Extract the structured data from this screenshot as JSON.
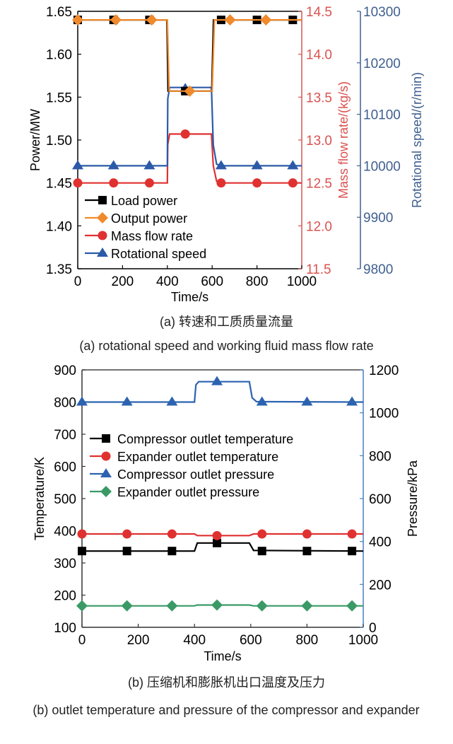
{
  "colors": {
    "load_power": "#000000",
    "output_power": "#f08a2c",
    "mass_flow": "#e03131",
    "rot_speed": "#2b5aa8",
    "comp_temp": "#000000",
    "exp_temp": "#e03131",
    "comp_press": "#2b63b0",
    "exp_press": "#3a9a66",
    "red_axis": "#d9534f",
    "blue_axis": "#3f5f8f",
    "press_axis": "#4a7fc0"
  },
  "chart_data": [
    {
      "type": "line",
      "title": "",
      "xlabel": "Time/s",
      "x_ticks": [
        "0",
        "200",
        "400",
        "600",
        "800",
        "1000"
      ],
      "xlim": [
        0,
        1000
      ],
      "axes": [
        {
          "label": "Power/MW",
          "side": "left",
          "ylim": [
            1.35,
            1.65
          ],
          "ticks": [
            "1.35",
            "1.40",
            "1.45",
            "1.50",
            "1.55",
            "1.60",
            "1.65"
          ]
        },
        {
          "label": "Mass flow rate/(kg/s)",
          "side": "right",
          "ylim": [
            11.5,
            14.5
          ],
          "ticks": [
            "11.5",
            "12.0",
            "12.5",
            "13.0",
            "13.5",
            "14.0",
            "14.5"
          ]
        },
        {
          "label": "Rotational speed/(r/min)",
          "side": "right-outer",
          "ylim": [
            9800,
            10300
          ],
          "ticks": [
            "9800",
            "9900",
            "10000",
            "10100",
            "10200",
            "10300"
          ]
        }
      ],
      "legend_position": "bottom-left",
      "series": [
        {
          "name": "Load power",
          "axis": 0,
          "marker": "square",
          "line": [
            [
              0,
              1.64
            ],
            [
              398,
              1.64
            ],
            [
              403,
              1.557
            ],
            [
              598,
              1.557
            ],
            [
              606,
              1.64
            ],
            [
              1000,
              1.64
            ]
          ],
          "marker_x": [
            0,
            160,
            320,
            480,
            640,
            800,
            960
          ],
          "marker_y": [
            1.64,
            1.64,
            1.64,
            1.557,
            1.64,
            1.64,
            1.64
          ]
        },
        {
          "name": "Output power",
          "axis": 0,
          "marker": "diamond",
          "line": [
            [
              0,
              1.64
            ],
            [
              400,
              1.64
            ],
            [
              408,
              1.557
            ],
            [
              600,
              1.557
            ],
            [
              610,
              1.64
            ],
            [
              1000,
              1.64
            ]
          ],
          "marker_x": [
            0,
            170,
            330,
            500,
            680,
            840
          ],
          "marker_y": [
            1.64,
            1.64,
            1.64,
            1.557,
            1.64,
            1.64
          ]
        },
        {
          "name": "Mass flow rate",
          "axis": 1,
          "marker": "circle",
          "line": [
            [
              0,
              12.5
            ],
            [
              400,
              12.5
            ],
            [
              402,
              12.95
            ],
            [
              410,
              13.07
            ],
            [
              597,
              13.07
            ],
            [
              605,
              12.7
            ],
            [
              620,
              12.52
            ],
            [
              640,
              12.5
            ],
            [
              1000,
              12.5
            ]
          ],
          "marker_x": [
            0,
            160,
            320,
            480,
            640,
            800,
            960
          ],
          "marker_y": [
            12.5,
            12.5,
            12.5,
            13.07,
            12.5,
            12.5,
            12.5
          ]
        },
        {
          "name": "Rotational speed",
          "axis": 2,
          "marker": "triangle",
          "line": [
            [
              0,
              10000
            ],
            [
              400,
              10000
            ],
            [
              402,
              10130
            ],
            [
              410,
              10152
            ],
            [
              597,
              10152
            ],
            [
              605,
              10040
            ],
            [
              620,
              10003
            ],
            [
              640,
              10000
            ],
            [
              1000,
              10000
            ]
          ],
          "marker_x": [
            0,
            160,
            320,
            480,
            640,
            800,
            960
          ],
          "marker_y": [
            10000,
            10000,
            10000,
            10150,
            10000,
            10000,
            10000
          ]
        }
      ],
      "caption_cn": "(a) 转速和工质质量流量",
      "caption_en": "(a) rotational speed and working fluid mass flow rate"
    },
    {
      "type": "line",
      "title": "",
      "xlabel": "Time/s",
      "x_ticks": [
        "0",
        "200",
        "400",
        "600",
        "800",
        "1000"
      ],
      "xlim": [
        0,
        1000
      ],
      "axes": [
        {
          "label": "Temperature/K",
          "side": "left",
          "ylim": [
            100,
            900
          ],
          "ticks": [
            "100",
            "200",
            "300",
            "400",
            "500",
            "600",
            "700",
            "800",
            "900"
          ]
        },
        {
          "label": "Pressure/kPa",
          "side": "right",
          "ylim": [
            0,
            1200
          ],
          "ticks": [
            "0",
            "200",
            "400",
            "600",
            "800",
            "1000",
            "1200"
          ]
        }
      ],
      "legend_position": "center-left",
      "series": [
        {
          "name": "Compressor outlet temperature",
          "axis": 0,
          "marker": "square",
          "line": [
            [
              0,
              337
            ],
            [
              400,
              337
            ],
            [
              410,
              362
            ],
            [
              595,
              362
            ],
            [
              610,
              339
            ],
            [
              1000,
              337
            ]
          ],
          "marker_x": [
            0,
            160,
            320,
            480,
            640,
            800,
            960
          ],
          "marker_y": [
            337,
            337,
            337,
            362,
            337,
            337,
            337
          ]
        },
        {
          "name": "Expander outlet temperature",
          "axis": 0,
          "marker": "circle",
          "line": [
            [
              0,
              390
            ],
            [
              400,
              390
            ],
            [
              410,
              385
            ],
            [
              595,
              385
            ],
            [
              610,
              390
            ],
            [
              1000,
              390
            ]
          ],
          "marker_x": [
            0,
            160,
            320,
            480,
            640,
            800,
            960
          ],
          "marker_y": [
            390,
            390,
            390,
            385,
            390,
            390,
            390
          ]
        },
        {
          "name": "Compressor outlet pressure",
          "axis": 1,
          "marker": "triangle",
          "line": [
            [
              0,
              1050
            ],
            [
              400,
              1050
            ],
            [
              405,
              1130
            ],
            [
              415,
              1145
            ],
            [
              595,
              1145
            ],
            [
              605,
              1070
            ],
            [
              620,
              1052
            ],
            [
              1000,
              1050
            ]
          ],
          "marker_x": [
            0,
            160,
            320,
            480,
            640,
            800,
            960
          ],
          "marker_y": [
            1050,
            1050,
            1050,
            1145,
            1050,
            1050,
            1050
          ]
        },
        {
          "name": "Expander outlet pressure",
          "axis": 1,
          "marker": "diamond",
          "line": [
            [
              0,
              100
            ],
            [
              400,
              100
            ],
            [
              410,
              104
            ],
            [
              595,
              104
            ],
            [
              610,
              100
            ],
            [
              1000,
              100
            ]
          ],
          "marker_x": [
            0,
            160,
            320,
            480,
            640,
            800,
            960
          ],
          "marker_y": [
            100,
            100,
            100,
            104,
            100,
            100,
            100
          ]
        }
      ],
      "caption_cn": "(b) 压缩机和膨胀机出口温度及压力",
      "caption_en": "(b) outlet temperature and pressure of the compressor and expander"
    }
  ]
}
